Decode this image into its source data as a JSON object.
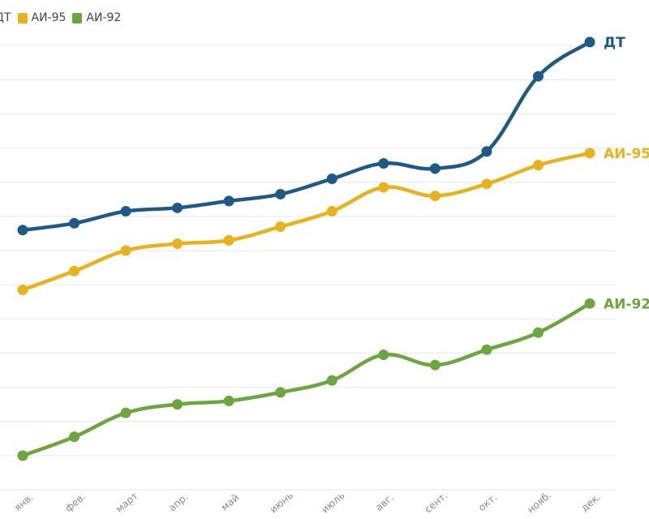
{
  "chart_data": {
    "type": "line",
    "categories": [
      "янв.",
      "фев.",
      "март",
      "апр.",
      "май",
      "июнь",
      "июль",
      "авг.",
      "сент.",
      "окт.",
      "нояб.",
      "дек."
    ],
    "series": [
      {
        "name": "ДТ",
        "end_label": "ДТ",
        "color": "#1d5a85",
        "values": [
          35.2,
          35.6,
          36.3,
          36.5,
          36.9,
          37.3,
          38.2,
          39.1,
          38.8,
          39.8,
          44.2,
          46.2
        ]
      },
      {
        "name": "АИ-95",
        "end_label": "АИ-95",
        "color": "#e8b21c",
        "values": [
          31.7,
          32.8,
          34.0,
          34.4,
          34.6,
          35.4,
          36.3,
          37.7,
          37.2,
          37.9,
          39.0,
          39.7
        ]
      },
      {
        "name": "АИ-92",
        "end_label": "АИ-92",
        "color": "#6da53f",
        "values": [
          22.0,
          23.1,
          24.5,
          25.0,
          25.2,
          25.7,
          26.4,
          27.9,
          27.3,
          28.2,
          29.2,
          30.9
        ]
      }
    ],
    "legend_position": "top-left",
    "grid": true,
    "ylim": [
      20,
      48
    ]
  }
}
